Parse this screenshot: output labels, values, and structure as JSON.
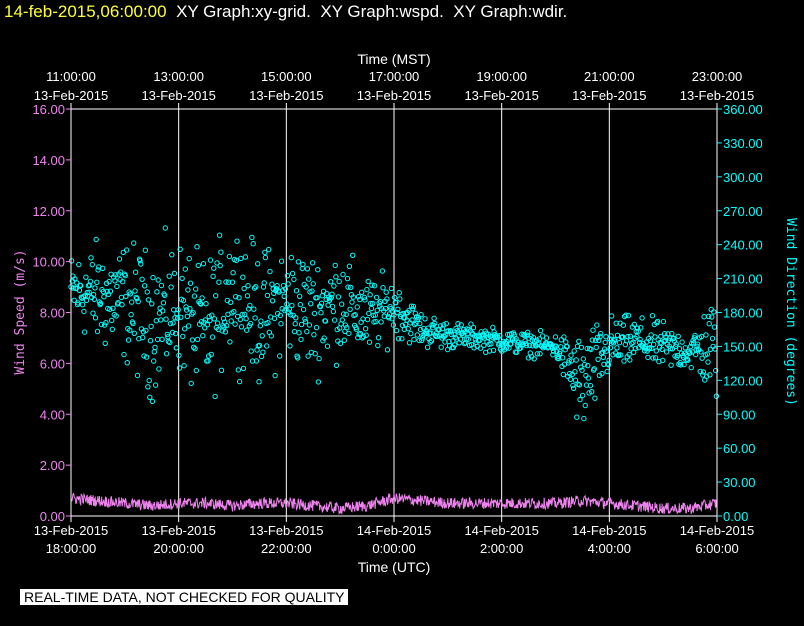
{
  "header": {
    "timestamp": "14-feb-2015,06:00:00",
    "items": [
      "XY Graph:xy-grid.",
      "XY Graph:wspd.",
      "XY Graph:wdir."
    ]
  },
  "notice": "REAL-TIME DATA, NOT CHECKED FOR QUALITY",
  "colors": {
    "speed": "#ee82ee",
    "direction": "#00ffff",
    "grid": "#ffffff",
    "header_time": "#ffff33"
  },
  "chart_data": {
    "type": "scatter",
    "top_axis": {
      "label": "Time (MST)",
      "ticks": [
        {
          "time": "11:00:00",
          "date": "13-Feb-2015"
        },
        {
          "time": "13:00:00",
          "date": "13-Feb-2015"
        },
        {
          "time": "15:00:00",
          "date": "13-Feb-2015"
        },
        {
          "time": "17:00:00",
          "date": "13-Feb-2015"
        },
        {
          "time": "19:00:00",
          "date": "13-Feb-2015"
        },
        {
          "time": "21:00:00",
          "date": "13-Feb-2015"
        },
        {
          "time": "23:00:00",
          "date": "13-Feb-2015"
        }
      ]
    },
    "bottom_axis": {
      "label": "Time (UTC)",
      "ticks": [
        {
          "date": "13-Feb-2015",
          "time": "18:00:00"
        },
        {
          "date": "13-Feb-2015",
          "time": "20:00:00"
        },
        {
          "date": "13-Feb-2015",
          "time": "22:00:00"
        },
        {
          "date": "14-Feb-2015",
          "time": "0:00:00"
        },
        {
          "date": "14-Feb-2015",
          "time": "2:00:00"
        },
        {
          "date": "14-Feb-2015",
          "time": "4:00:00"
        },
        {
          "date": "14-Feb-2015",
          "time": "6:00:00"
        }
      ],
      "range_hours_utc": [
        "2015-02-13 18:00",
        "2015-02-14 06:00"
      ]
    },
    "left_axis": {
      "label": "Wind Speed (m/s)",
      "ylim": [
        0,
        16
      ],
      "tick_labels": [
        "0.00",
        "2.00",
        "4.00",
        "6.00",
        "8.00",
        "10.00",
        "12.00",
        "14.00",
        "16.00"
      ]
    },
    "right_axis": {
      "label": "Wind Direction (degrees)",
      "ylim": [
        0,
        360
      ],
      "tick_labels": [
        "0.00",
        "30.00",
        "60.00",
        "90.00",
        "120.00",
        "150.00",
        "180.00",
        "210.00",
        "240.00",
        "270.00",
        "300.00",
        "330.00",
        "360.00"
      ]
    },
    "grid": "vertical lines only",
    "series": [
      {
        "name": "wspd",
        "axis": "left",
        "style": "line",
        "x_utc": [
          "18:00",
          "18:30",
          "19:00",
          "19:30",
          "20:00",
          "20:30",
          "21:00",
          "21:30",
          "22:00",
          "22:30",
          "23:00",
          "23:30",
          "00:00",
          "00:30",
          "01:00",
          "01:30",
          "02:00",
          "02:30",
          "03:00",
          "03:30",
          "04:00",
          "04:30",
          "05:00",
          "05:30",
          "06:00"
        ],
        "values": [
          0.7,
          0.6,
          0.5,
          0.4,
          0.5,
          0.5,
          0.4,
          0.5,
          0.5,
          0.4,
          0.3,
          0.4,
          0.7,
          0.6,
          0.5,
          0.5,
          0.5,
          0.5,
          0.5,
          0.6,
          0.5,
          0.4,
          0.3,
          0.3,
          0.5
        ]
      },
      {
        "name": "wdir",
        "axis": "right",
        "style": "circles",
        "x_utc": [
          "18:00",
          "18:30",
          "19:00",
          "19:30",
          "20:00",
          "20:30",
          "21:00",
          "21:30",
          "22:00",
          "22:30",
          "23:00",
          "23:30",
          "00:00",
          "00:30",
          "01:00",
          "01:30",
          "02:00",
          "02:30",
          "03:00",
          "03:30",
          "04:00",
          "04:30",
          "05:00",
          "05:30",
          "06:00"
        ],
        "values": [
          200,
          195,
          190,
          170,
          185,
          160,
          205,
          175,
          190,
          180,
          190,
          175,
          185,
          165,
          160,
          158,
          155,
          152,
          150,
          115,
          150,
          155,
          150,
          145,
          150
        ],
        "spread": [
          30,
          45,
          50,
          60,
          55,
          60,
          55,
          55,
          50,
          50,
          45,
          35,
          25,
          15,
          12,
          10,
          10,
          10,
          10,
          45,
          25,
          20,
          20,
          15,
          50
        ]
      }
    ]
  }
}
